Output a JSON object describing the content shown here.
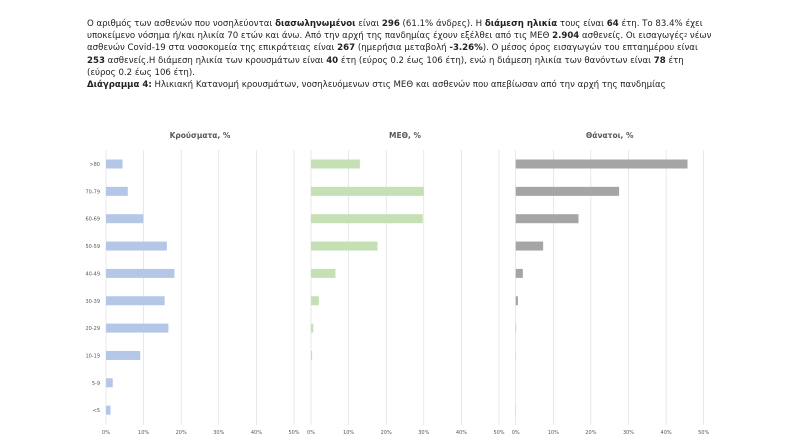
{
  "paragraph": {
    "s1": "Ο αριθμός των ασθενών που νοσηλεύονται ",
    "b1": "διασωληνωμένοι",
    "s2": " είναι ",
    "b2": "296",
    "s3": " (61.1% άνδρες).  Η ",
    "b3": "διάμεση ηλικία",
    "s4": " τους είναι ",
    "b4": "64",
    "s5": " έτη.  Το 83.4% έχει υποκείμενο νόσημα ή/και ηλικία 70 ετών και άνω. Από την αρχή της πανδημίας έχουν εξέλθει από τις ΜΕΘ ",
    "b5": "2.904",
    "s6": " ασθενείς. Οι εισαγωγές",
    "sup": "2",
    "s7": " νέων ασθενών Covid-19 στα νοσοκομεία της επικράτειας είναι ",
    "b6": "267",
    "s8": " (ημερήσια μεταβολή ",
    "b7": "-3.26%",
    "s9": "). Ο μέσος όρος εισαγωγών του επταημέρου είναι ",
    "b8": "253",
    "s10": " ασθενείς.Η διάμεση ηλικία των κρουσμάτων είναι ",
    "b9": "40",
    "s11": " έτη (εύρος 0.2 έως 106 έτη), ενώ η διάμεση ηλικία των θανόντων είναι ",
    "b10": "78",
    "s12": " έτη (εύρος 0.2 έως 106 έτη)."
  },
  "caption": {
    "label": "Διάγραμμα 4:",
    "text": " Ηλικιακή Κατανομή κρουσμάτων, νοσηλευόμενων στις ΜΕΘ και ασθενών που απεβίωσαν από την αρχή της πανδημίας"
  },
  "chart_data": [
    {
      "type": "bar",
      "orientation": "horizontal",
      "title": "Κρούσματα, %",
      "categories": [
        ">80",
        "70-79",
        "60-69",
        "50-59",
        "40-49",
        "30-39",
        "20-29",
        "10-19",
        "5-9",
        "<5"
      ],
      "values": [
        4.4,
        5.8,
        9.9,
        16.2,
        18.2,
        15.6,
        16.6,
        9.1,
        1.8,
        1.2
      ],
      "xlim": [
        0,
        50
      ],
      "ticks": [
        "0%",
        "10%",
        "20%",
        "30%",
        "40%",
        "50%"
      ],
      "grid": true,
      "color": "#b4c7e7"
    },
    {
      "type": "bar",
      "orientation": "horizontal",
      "title": "ΜΕΘ, %",
      "categories": [
        ">80",
        "70-79",
        "60-69",
        "50-59",
        "40-49",
        "30-39",
        "20-29",
        "10-19",
        "5-9",
        "<5"
      ],
      "values": [
        13.0,
        29.9,
        29.7,
        17.7,
        6.5,
        2.1,
        0.6,
        0.3,
        0,
        0
      ],
      "xlim": [
        0,
        50
      ],
      "ticks": [
        "0%",
        "10%",
        "20%",
        "30%",
        "40%",
        "50%"
      ],
      "grid": true,
      "color": "#c5e0b4"
    },
    {
      "type": "bar",
      "orientation": "horizontal",
      "title": "Θάνατοι, %",
      "categories": [
        ">80",
        "70-79",
        "60-69",
        "50-59",
        "40-49",
        "30-39",
        "20-29",
        "10-19",
        "5-9",
        "<5"
      ],
      "values": [
        45.7,
        27.5,
        16.7,
        7.3,
        1.9,
        0.6,
        0.1,
        0.05,
        0,
        0.05
      ],
      "xlim": [
        0,
        50
      ],
      "ticks": [
        "0%",
        "10%",
        "20%",
        "30%",
        "40%",
        "50%"
      ],
      "grid": true,
      "color": "#a5a5a5"
    }
  ]
}
